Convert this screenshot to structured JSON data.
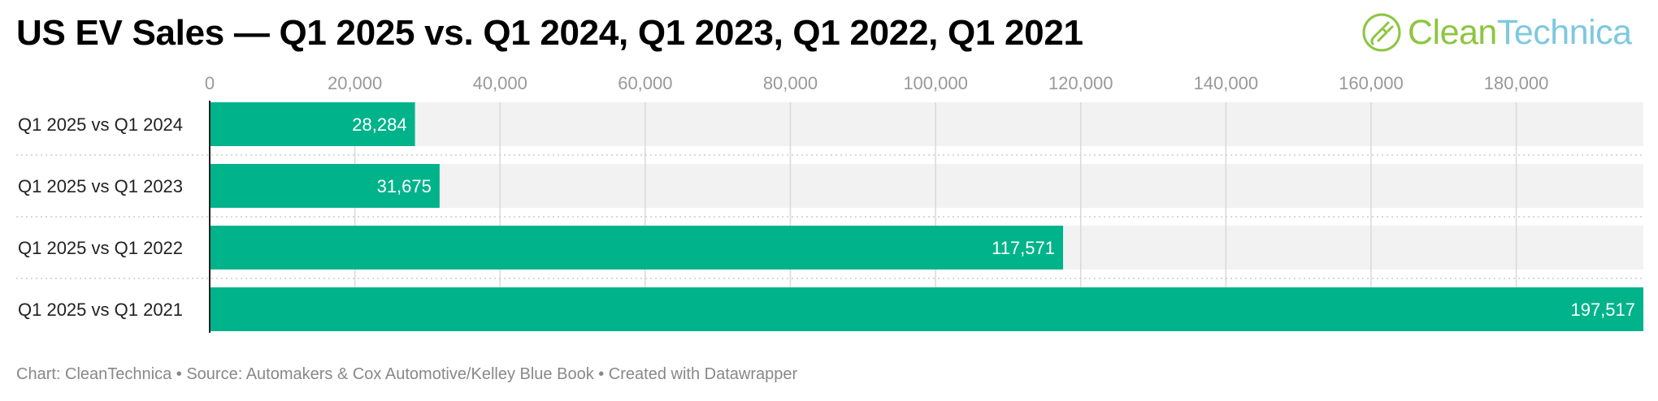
{
  "title": "US EV Sales — Q1 2025 vs. Q1 2024, Q1 2023, Q1 2022, Q1 2021",
  "logo": {
    "text_primary": "Clean",
    "text_secondary": "Technica",
    "icon": "plug-leaf-icon",
    "color_primary": "#8cc63f",
    "color_secondary": "#7fc8e0"
  },
  "footer": "Chart: CleanTechnica • Source: Automakers & Cox Automotive/Kelley Blue Book • Created with Datawrapper",
  "colors": {
    "bar": "#00b38a",
    "track": "#f2f2f2"
  },
  "chart_data": {
    "type": "bar",
    "orientation": "horizontal",
    "categories": [
      "Q1 2025 vs Q1 2024",
      "Q1 2025 vs Q1 2023",
      "Q1 2025 vs Q1 2022",
      "Q1 2025 vs Q1 2021"
    ],
    "values": [
      28284,
      31675,
      117571,
      197517
    ],
    "value_labels": [
      "28,284",
      "31,675",
      "117,571",
      "197,517"
    ],
    "xlim": [
      0,
      197517
    ],
    "x_ticks": [
      0,
      20000,
      40000,
      60000,
      80000,
      100000,
      120000,
      140000,
      160000,
      180000
    ],
    "x_tick_labels": [
      "0",
      "20,000",
      "40,000",
      "60,000",
      "80,000",
      "100,000",
      "120,000",
      "140,000",
      "160,000",
      "180,000"
    ],
    "axis_position": "top",
    "grid": true
  }
}
